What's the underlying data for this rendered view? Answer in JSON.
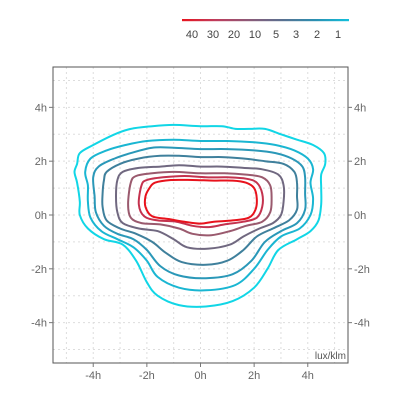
{
  "chart_data": {
    "type": "contour",
    "unit_label": "lux/klm",
    "x_ticks": [
      {
        "v": -4,
        "label": "-4h"
      },
      {
        "v": -2,
        "label": "-2h"
      },
      {
        "v": 0,
        "label": "0h"
      },
      {
        "v": 2,
        "label": "2h"
      },
      {
        "v": 4,
        "label": "4h"
      }
    ],
    "y_ticks": [
      {
        "v": 4,
        "label": "4h"
      },
      {
        "v": 2,
        "label": "2h"
      },
      {
        "v": 0,
        "label": "0h"
      },
      {
        "v": -2,
        "label": "-2h"
      },
      {
        "v": -4,
        "label": "-4h"
      }
    ],
    "xlim": [
      -5.5,
      5.5
    ],
    "ylim": [
      -5.5,
      5.5
    ],
    "grid": true,
    "grid_color": "#dddddd",
    "legend_placement": "top-right",
    "legend": {
      "levels": [
        "40",
        "30",
        "20",
        "10",
        "5",
        "3",
        "2",
        "1"
      ],
      "gradient": [
        "#e8141e",
        "#c03c5c",
        "#8c5a78",
        "#5a7090",
        "#2a90b2",
        "#12c0dc"
      ]
    },
    "contours": [
      {
        "level": "1",
        "color": "#11d6e6",
        "points": [
          [
            -4.6,
            1.9
          ],
          [
            -4.5,
            2.3
          ],
          [
            -4.0,
            2.6
          ],
          [
            -3.2,
            3.0
          ],
          [
            -2.6,
            3.2
          ],
          [
            -1.8,
            3.3
          ],
          [
            -1.0,
            3.35
          ],
          [
            0.0,
            3.3
          ],
          [
            0.8,
            3.3
          ],
          [
            1.3,
            3.2
          ],
          [
            1.8,
            3.2
          ],
          [
            2.4,
            3.2
          ],
          [
            3.0,
            3.0
          ],
          [
            3.6,
            2.8
          ],
          [
            4.2,
            2.6
          ],
          [
            4.6,
            2.3
          ],
          [
            4.65,
            1.9
          ],
          [
            4.5,
            1.5
          ],
          [
            4.5,
            1.0
          ],
          [
            4.5,
            0.4
          ],
          [
            4.4,
            -0.2
          ],
          [
            4.1,
            -0.6
          ],
          [
            3.6,
            -0.9
          ],
          [
            2.9,
            -1.3
          ],
          [
            2.5,
            -2.0
          ],
          [
            2.0,
            -2.7
          ],
          [
            1.2,
            -3.2
          ],
          [
            0.2,
            -3.4
          ],
          [
            -0.8,
            -3.35
          ],
          [
            -1.6,
            -3.0
          ],
          [
            -2.0,
            -2.5
          ],
          [
            -2.4,
            -1.7
          ],
          [
            -2.9,
            -1.1
          ],
          [
            -3.6,
            -0.9
          ],
          [
            -4.2,
            -0.5
          ],
          [
            -4.5,
            0.0
          ],
          [
            -4.5,
            0.5
          ],
          [
            -4.6,
            1.2
          ],
          [
            -4.7,
            1.6
          ]
        ]
      },
      {
        "level": "2",
        "color": "#1ab6d2",
        "points": [
          [
            -4.3,
            1.6
          ],
          [
            -4.1,
            2.1
          ],
          [
            -3.5,
            2.4
          ],
          [
            -2.8,
            2.6
          ],
          [
            -2.0,
            2.75
          ],
          [
            -1.0,
            2.8
          ],
          [
            0.0,
            2.75
          ],
          [
            1.0,
            2.75
          ],
          [
            2.0,
            2.7
          ],
          [
            2.8,
            2.6
          ],
          [
            3.5,
            2.4
          ],
          [
            4.0,
            2.1
          ],
          [
            4.2,
            1.7
          ],
          [
            4.1,
            1.2
          ],
          [
            4.2,
            0.6
          ],
          [
            4.1,
            0.0
          ],
          [
            3.7,
            -0.5
          ],
          [
            3.0,
            -0.8
          ],
          [
            2.5,
            -1.3
          ],
          [
            2.0,
            -2.0
          ],
          [
            1.3,
            -2.6
          ],
          [
            0.2,
            -2.8
          ],
          [
            -0.8,
            -2.7
          ],
          [
            -1.6,
            -2.3
          ],
          [
            -2.0,
            -1.7
          ],
          [
            -2.5,
            -1.2
          ],
          [
            -3.1,
            -0.9
          ],
          [
            -3.7,
            -0.6
          ],
          [
            -4.1,
            -0.1
          ],
          [
            -4.2,
            0.5
          ],
          [
            -4.2,
            1.1
          ]
        ]
      },
      {
        "level": "3",
        "color": "#2a98b8",
        "points": [
          [
            -4.0,
            1.4
          ],
          [
            -3.8,
            1.8
          ],
          [
            -3.2,
            2.1
          ],
          [
            -2.6,
            2.3
          ],
          [
            -1.8,
            2.5
          ],
          [
            -1.0,
            2.5
          ],
          [
            0.0,
            2.45
          ],
          [
            1.0,
            2.45
          ],
          [
            2.0,
            2.4
          ],
          [
            2.8,
            2.3
          ],
          [
            3.4,
            2.1
          ],
          [
            3.8,
            1.8
          ],
          [
            3.9,
            1.4
          ],
          [
            3.9,
            0.8
          ],
          [
            3.9,
            0.2
          ],
          [
            3.6,
            -0.3
          ],
          [
            3.0,
            -0.6
          ],
          [
            2.4,
            -1.0
          ],
          [
            1.9,
            -1.7
          ],
          [
            1.2,
            -2.2
          ],
          [
            0.2,
            -2.35
          ],
          [
            -0.8,
            -2.25
          ],
          [
            -1.5,
            -1.9
          ],
          [
            -2.0,
            -1.3
          ],
          [
            -2.5,
            -0.9
          ],
          [
            -3.1,
            -0.7
          ],
          [
            -3.6,
            -0.4
          ],
          [
            -3.9,
            0.1
          ],
          [
            -3.95,
            0.7
          ]
        ]
      },
      {
        "level": "5",
        "color": "#3f809c",
        "points": [
          [
            -3.6,
            1.3
          ],
          [
            -3.5,
            1.6
          ],
          [
            -3.0,
            1.9
          ],
          [
            -2.3,
            2.1
          ],
          [
            -1.5,
            2.2
          ],
          [
            -0.8,
            2.2
          ],
          [
            0.0,
            2.15
          ],
          [
            0.8,
            2.15
          ],
          [
            1.6,
            2.1
          ],
          [
            2.4,
            2.0
          ],
          [
            3.1,
            1.9
          ],
          [
            3.5,
            1.6
          ],
          [
            3.6,
            1.2
          ],
          [
            3.6,
            0.7
          ],
          [
            3.6,
            0.2
          ],
          [
            3.3,
            -0.2
          ],
          [
            2.7,
            -0.5
          ],
          [
            2.1,
            -0.8
          ],
          [
            1.6,
            -1.3
          ],
          [
            1.0,
            -1.7
          ],
          [
            0.2,
            -1.85
          ],
          [
            -0.7,
            -1.75
          ],
          [
            -1.3,
            -1.4
          ],
          [
            -1.8,
            -1.0
          ],
          [
            -2.4,
            -0.7
          ],
          [
            -3.0,
            -0.5
          ],
          [
            -3.5,
            -0.2
          ],
          [
            -3.65,
            0.3
          ],
          [
            -3.65,
            0.8
          ]
        ]
      },
      {
        "level": "10",
        "color": "#706880",
        "points": [
          [
            -3.1,
            1.3
          ],
          [
            -2.9,
            1.6
          ],
          [
            -2.3,
            1.75
          ],
          [
            -1.5,
            1.8
          ],
          [
            -0.8,
            1.85
          ],
          [
            0.0,
            1.8
          ],
          [
            0.8,
            1.8
          ],
          [
            1.6,
            1.75
          ],
          [
            2.3,
            1.7
          ],
          [
            2.9,
            1.5
          ],
          [
            3.1,
            1.1
          ],
          [
            3.1,
            0.5
          ],
          [
            3.0,
            0.0
          ],
          [
            2.7,
            -0.3
          ],
          [
            2.2,
            -0.5
          ],
          [
            1.6,
            -0.8
          ],
          [
            1.1,
            -1.1
          ],
          [
            0.3,
            -1.25
          ],
          [
            -0.5,
            -1.2
          ],
          [
            -1.0,
            -0.9
          ],
          [
            -1.6,
            -0.6
          ],
          [
            -2.3,
            -0.5
          ],
          [
            -2.9,
            -0.3
          ],
          [
            -3.1,
            0.1
          ],
          [
            -3.15,
            0.7
          ]
        ]
      },
      {
        "level": "20",
        "color": "#9a5a6e",
        "points": [
          [
            -2.6,
            1.2
          ],
          [
            -2.4,
            1.45
          ],
          [
            -1.8,
            1.55
          ],
          [
            -1.0,
            1.6
          ],
          [
            0.0,
            1.55
          ],
          [
            0.9,
            1.55
          ],
          [
            1.7,
            1.5
          ],
          [
            2.3,
            1.4
          ],
          [
            2.6,
            1.1
          ],
          [
            2.65,
            0.6
          ],
          [
            2.6,
            0.1
          ],
          [
            2.3,
            -0.25
          ],
          [
            1.7,
            -0.4
          ],
          [
            1.1,
            -0.6
          ],
          [
            0.4,
            -0.75
          ],
          [
            -0.3,
            -0.7
          ],
          [
            -0.8,
            -0.5
          ],
          [
            -1.5,
            -0.35
          ],
          [
            -2.2,
            -0.3
          ],
          [
            -2.6,
            -0.1
          ],
          [
            -2.7,
            0.4
          ]
        ]
      },
      {
        "level": "30",
        "color": "#c4324e",
        "points": [
          [
            -2.2,
            1.1
          ],
          [
            -2.0,
            1.3
          ],
          [
            -1.4,
            1.4
          ],
          [
            -0.6,
            1.45
          ],
          [
            0.2,
            1.4
          ],
          [
            1.0,
            1.4
          ],
          [
            1.7,
            1.35
          ],
          [
            2.1,
            1.2
          ],
          [
            2.3,
            0.8
          ],
          [
            2.3,
            0.3
          ],
          [
            2.1,
            -0.1
          ],
          [
            1.6,
            -0.25
          ],
          [
            0.9,
            -0.35
          ],
          [
            0.3,
            -0.45
          ],
          [
            -0.3,
            -0.4
          ],
          [
            -0.9,
            -0.25
          ],
          [
            -1.6,
            -0.2
          ],
          [
            -2.1,
            -0.05
          ],
          [
            -2.3,
            0.4
          ]
        ]
      },
      {
        "level": "40",
        "color": "#e8121c",
        "points": [
          [
            -1.9,
            1.0
          ],
          [
            -1.7,
            1.2
          ],
          [
            -1.1,
            1.3
          ],
          [
            -0.3,
            1.3
          ],
          [
            0.5,
            1.28
          ],
          [
            1.2,
            1.28
          ],
          [
            1.7,
            1.2
          ],
          [
            2.0,
            1.0
          ],
          [
            2.1,
            0.6
          ],
          [
            2.05,
            0.2
          ],
          [
            1.8,
            -0.1
          ],
          [
            1.2,
            -0.2
          ],
          [
            0.5,
            -0.25
          ],
          [
            0.0,
            -0.32
          ],
          [
            -0.6,
            -0.25
          ],
          [
            -1.2,
            -0.15
          ],
          [
            -1.8,
            -0.05
          ],
          [
            -2.05,
            0.3
          ],
          [
            -2.05,
            0.7
          ]
        ]
      }
    ]
  }
}
